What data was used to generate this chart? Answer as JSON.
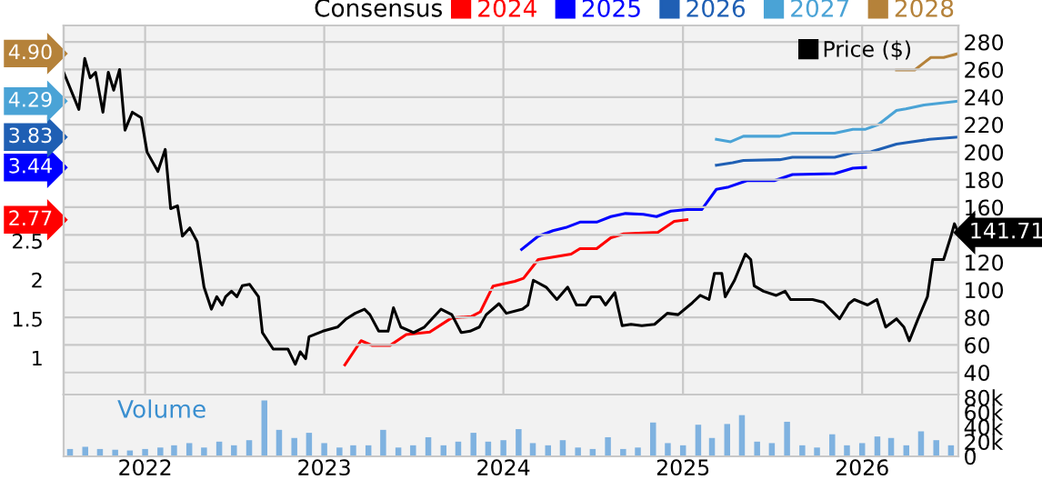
{
  "chart_data": [
    {
      "type": "line",
      "legend_title": "Consensus",
      "annotations": [
        "2.77",
        "3.44",
        "3.83",
        "4.29",
        "4.90",
        "141.71"
      ],
      "legend": "top",
      "grid": true,
      "tick_labels": "y",
      "xlim": [
        "2021-07-19",
        "2026-07-16"
      ],
      "xticks": [
        {
          "value": "2022-01-01",
          "label": null
        },
        {
          "value": "2023-01-01",
          "label": null
        },
        {
          "value": "2024-01-01",
          "label": null
        },
        {
          "value": "2025-01-01",
          "label": null
        },
        {
          "value": "2026-01-01",
          "label": null
        }
      ],
      "ylim": [
        0.53,
        5.26
      ],
      "yticks": [
        1,
        1.5,
        2,
        2.5
      ],
      "y2lim": [
        24,
        292
      ],
      "y2ticks": [
        40,
        60,
        80,
        100,
        120,
        {
          "value": 140,
          "label": null
        },
        160,
        180,
        200,
        220,
        240,
        260,
        280
      ],
      "series": [
        {
          "name": "2024",
          "color": "#ff0000",
          "axis": "y",
          "x": [
            "2023-02-12",
            "2023-03-17",
            "2023-04-08",
            "2023-05-15",
            "2023-06-17",
            "2023-08-04",
            "2023-09-17",
            "2023-10-28",
            "2023-11-15",
            "2023-12-11",
            "2024-01-24",
            "2024-02-11",
            "2024-03-12",
            "2024-05-18",
            "2024-06-05",
            "2024-07-09",
            "2024-08-07",
            "2024-09-02",
            "2024-10-12",
            "2024-11-11",
            "2024-12-14",
            "2025-01-09"
          ],
          "values": [
            0.91,
            1.22,
            1.16,
            1.16,
            1.3,
            1.33,
            1.51,
            1.53,
            1.59,
            1.92,
            1.98,
            2.02,
            2.26,
            2.33,
            2.4,
            2.4,
            2.54,
            2.59,
            2.6,
            2.61,
            2.75,
            2.77
          ]
        },
        {
          "name": "2025",
          "color": "#0000ff",
          "axis": "y",
          "x": [
            "2024-02-07",
            "2024-03-12",
            "2024-04-11",
            "2024-05-07",
            "2024-06-05",
            "2024-07-09",
            "2024-08-07",
            "2024-09-06",
            "2024-10-12",
            "2024-11-08",
            "2024-12-07",
            "2025-01-09",
            "2025-02-08",
            "2025-03-10",
            "2025-04-04",
            "2025-05-11",
            "2025-07-06",
            "2025-08-12",
            "2025-11-06",
            "2025-12-13",
            "2026-01-08"
          ],
          "values": [
            2.39,
            2.56,
            2.63,
            2.67,
            2.74,
            2.74,
            2.81,
            2.85,
            2.84,
            2.81,
            2.88,
            2.9,
            2.9,
            3.16,
            3.19,
            3.27,
            3.27,
            3.35,
            3.36,
            3.43,
            3.44
          ]
        },
        {
          "name": "2026",
          "color": "#1f5fb4",
          "axis": "y",
          "x": [
            "2025-03-10",
            "2025-04-12",
            "2025-05-04",
            "2025-07-17",
            "2025-08-12",
            "2025-11-06",
            "2025-12-13",
            "2026-01-19",
            "2026-03-12",
            "2026-04-03",
            "2026-05-18",
            "2026-07-16"
          ],
          "values": [
            3.47,
            3.5,
            3.53,
            3.54,
            3.57,
            3.57,
            3.63,
            3.64,
            3.74,
            3.76,
            3.8,
            3.83
          ]
        },
        {
          "name": "2027",
          "color": "#4aa3d6",
          "axis": "y",
          "x": [
            "2025-03-10",
            "2025-04-08",
            "2025-05-04",
            "2025-07-17",
            "2025-08-12",
            "2025-11-06",
            "2025-12-13",
            "2026-01-08",
            "2026-02-03",
            "2026-03-12",
            "2026-03-31",
            "2026-05-07",
            "2026-07-16"
          ],
          "values": [
            3.8,
            3.77,
            3.84,
            3.84,
            3.88,
            3.88,
            3.93,
            3.93,
            3.99,
            4.17,
            4.19,
            4.24,
            4.29
          ]
        },
        {
          "name": "2028",
          "color": "#b5823a",
          "axis": "y",
          "x": [
            "2026-03-12",
            "2026-04-18",
            "2026-05-21",
            "2026-06-16",
            "2026-07-16"
          ],
          "values": [
            4.69,
            4.69,
            4.85,
            4.85,
            4.9
          ]
        },
        {
          "name": "Price ($)",
          "color": "#000000",
          "axis": "y2",
          "x": [
            "2021-07-19",
            "2021-08-19",
            "2021-08-31",
            "2021-09-11",
            "2021-09-22",
            "2021-10-07",
            "2021-10-18",
            "2021-10-29",
            "2021-11-10",
            "2021-11-21",
            "2021-12-06",
            "2021-12-24",
            "2022-01-05",
            "2022-01-27",
            "2022-02-11",
            "2022-02-22",
            "2022-03-08",
            "2022-03-18",
            "2022-04-02",
            "2022-04-17",
            "2022-05-01",
            "2022-05-16",
            "2022-05-27",
            "2022-06-07",
            "2022-06-14",
            "2022-06-26",
            "2022-07-07",
            "2022-07-18",
            "2022-08-02",
            "2022-08-20",
            "2022-08-28",
            "2022-09-19",
            "2022-10-19",
            "2022-11-03",
            "2022-11-13",
            "2022-11-24",
            "2022-12-01",
            "2022-12-29",
            "2023-01-28",
            "2023-02-15",
            "2023-03-05",
            "2023-03-24",
            "2023-04-04",
            "2023-04-22",
            "2023-05-11",
            "2023-05-22",
            "2023-06-06",
            "2023-07-02",
            "2023-07-24",
            "2023-08-27",
            "2023-09-18",
            "2023-10-07",
            "2023-10-25",
            "2023-11-13",
            "2023-11-27",
            "2023-12-23",
            "2024-01-07",
            "2024-02-09",
            "2024-02-20",
            "2024-03-02",
            "2024-03-28",
            "2024-04-19",
            "2024-05-11",
            "2024-05-29",
            "2024-06-17",
            "2024-06-28",
            "2024-07-16",
            "2024-07-27",
            "2024-08-15",
            "2024-08-30",
            "2024-09-17",
            "2024-10-09",
            "2024-11-04",
            "2024-11-30",
            "2024-12-22",
            "2025-01-18",
            "2025-02-05",
            "2025-02-23",
            "2025-03-06",
            "2025-03-21",
            "2025-03-28",
            "2025-04-16",
            "2025-05-08",
            "2025-05-19",
            "2025-05-26",
            "2025-06-14",
            "2025-07-10",
            "2025-07-28",
            "2025-08-08",
            "2025-09-22",
            "2025-10-14",
            "2025-11-16",
            "2025-12-05",
            "2025-12-16",
            "2026-01-12",
            "2026-01-31",
            "2026-02-18",
            "2026-03-12",
            "2026-03-27",
            "2026-04-07",
            "2026-04-25",
            "2026-05-14",
            "2026-05-25",
            "2026-06-16",
            "2026-07-01",
            "2026-07-08",
            "2026-07-16"
          ],
          "values": [
            258,
            231,
            268,
            254,
            258,
            229,
            258,
            245,
            260,
            216,
            229,
            225,
            200,
            186,
            202,
            159,
            161,
            139,
            145,
            135,
            102,
            86,
            95,
            89,
            95,
            99,
            95,
            103,
            104,
            95,
            69,
            57,
            57,
            46,
            55,
            50,
            66,
            70,
            73,
            79,
            83,
            86,
            82,
            70,
            70,
            87,
            73,
            69,
            73,
            86,
            82,
            69,
            70,
            73,
            82,
            90,
            83,
            86,
            89,
            107,
            102,
            93,
            102,
            89,
            89,
            95,
            95,
            89,
            98,
            74,
            75,
            74,
            75,
            83,
            82,
            90,
            96,
            93,
            112,
            112,
            95,
            107,
            126,
            122,
            103,
            99,
            96,
            99,
            93,
            93,
            91,
            79,
            90,
            93,
            89,
            93,
            73,
            79,
            73,
            63,
            79,
            95,
            122,
            122,
            139,
            148,
            141.71
          ]
        }
      ]
    },
    {
      "type": "bar",
      "title": "Volume",
      "color": "#7fb2e0",
      "xlim": [
        "2021-07-19",
        "2026-07-16"
      ],
      "xticks": [
        {
          "value": "2022-01-01",
          "label": "2022"
        },
        {
          "value": "2023-01-01",
          "label": "2023"
        },
        {
          "value": "2024-01-01",
          "label": "2024"
        },
        {
          "value": "2025-01-01",
          "label": "2025"
        },
        {
          "value": "2026-01-01",
          "label": "2026"
        }
      ],
      "ylim": [
        0,
        84000
      ],
      "yticks": [
        {
          "value": 0,
          "label": "0"
        },
        {
          "value": 20000,
          "label": "20k"
        },
        {
          "value": 40000,
          "label": "40k"
        },
        {
          "value": 60000,
          "label": "60k"
        },
        {
          "value": 80000,
          "label": "80k"
        }
      ],
      "x": [
        "2021-08-01",
        "2021-09-01",
        "2021-10-01",
        "2021-11-01",
        "2021-12-01",
        "2022-01-01",
        "2022-02-01",
        "2022-03-01",
        "2022-04-01",
        "2022-05-01",
        "2022-06-01",
        "2022-07-01",
        "2022-08-01",
        "2022-09-01",
        "2022-10-01",
        "2022-11-01",
        "2022-12-01",
        "2023-01-01",
        "2023-02-01",
        "2023-03-01",
        "2023-04-01",
        "2023-05-01",
        "2023-06-01",
        "2023-07-01",
        "2023-08-01",
        "2023-09-01",
        "2023-10-01",
        "2023-11-01",
        "2023-12-01",
        "2024-01-01",
        "2024-02-01",
        "2024-03-01",
        "2024-04-01",
        "2024-05-01",
        "2024-06-01",
        "2024-07-01",
        "2024-08-01",
        "2024-09-01",
        "2024-10-01",
        "2024-11-01",
        "2024-12-01",
        "2025-01-01",
        "2025-02-01",
        "2025-03-01",
        "2025-04-01",
        "2025-05-01",
        "2025-06-01",
        "2025-07-01",
        "2025-08-01",
        "2025-09-01",
        "2025-10-01",
        "2025-11-01",
        "2025-12-01",
        "2026-01-01",
        "2026-02-01",
        "2026-03-01",
        "2026-04-01",
        "2026-05-01",
        "2026-06-01",
        "2026-07-01"
      ],
      "values": [
        10000,
        13000,
        10000,
        9000,
        8000,
        10000,
        12000,
        15000,
        18000,
        12000,
        20000,
        15000,
        22000,
        76000,
        36000,
        25000,
        32000,
        18000,
        12000,
        15000,
        15000,
        36000,
        12000,
        15000,
        26000,
        15000,
        20000,
        32000,
        20000,
        22000,
        37000,
        18000,
        15000,
        22000,
        12000,
        10000,
        26000,
        10000,
        12000,
        46000,
        18000,
        15000,
        43000,
        25000,
        44000,
        56000,
        20000,
        18000,
        47000,
        15000,
        12000,
        30000,
        15000,
        18000,
        27000,
        25000,
        15000,
        34000,
        22000,
        15000
      ]
    }
  ]
}
